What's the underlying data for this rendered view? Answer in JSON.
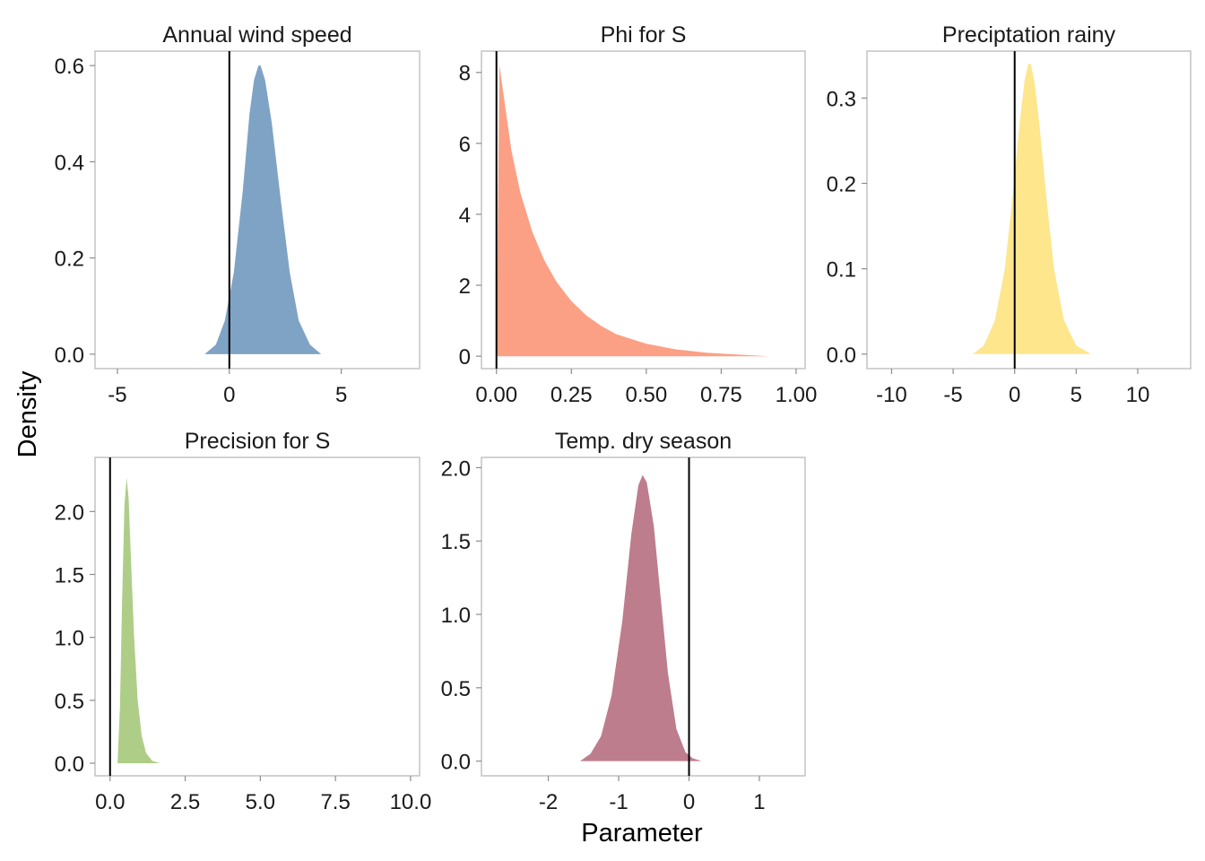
{
  "figure": {
    "xlabel": "Parameter",
    "ylabel": "Density"
  },
  "chart_data": [
    {
      "type": "area",
      "title": "Annual wind speed",
      "color": "#7fa3c4",
      "xlim": [
        -6.0,
        8.5
      ],
      "ylim": [
        -0.03,
        0.63
      ],
      "xticks": [
        -5,
        0,
        5
      ],
      "xtick_labels": [
        "-5",
        "0",
        "5"
      ],
      "yticks": [
        0.0,
        0.2,
        0.4,
        0.6
      ],
      "ytick_labels": [
        "0.0",
        "0.2",
        "0.4",
        "0.6"
      ],
      "ref_x": 0,
      "x": [
        -1.1,
        -0.6,
        -0.2,
        0.2,
        0.6,
        0.9,
        1.1,
        1.3,
        1.4,
        1.6,
        1.9,
        2.3,
        2.7,
        3.1,
        3.6,
        4.1
      ],
      "y": [
        0.0,
        0.02,
        0.07,
        0.17,
        0.34,
        0.5,
        0.57,
        0.6,
        0.6,
        0.57,
        0.48,
        0.32,
        0.17,
        0.07,
        0.02,
        0.0
      ]
    },
    {
      "type": "area",
      "title": "Phi for S",
      "color": "#fba084",
      "xlim": [
        -0.05,
        1.03
      ],
      "ylim": [
        -0.35,
        8.6
      ],
      "xticks": [
        0.0,
        0.25,
        0.5,
        0.75,
        1.0
      ],
      "xtick_labels": [
        "0.00",
        "0.25",
        "0.50",
        "0.75",
        "1.00"
      ],
      "yticks": [
        0,
        2,
        4,
        6,
        8
      ],
      "ytick_labels": [
        "0",
        "2",
        "4",
        "6",
        "8"
      ],
      "ref_x": 0,
      "x": [
        0.0,
        0.01,
        0.03,
        0.05,
        0.08,
        0.12,
        0.16,
        0.2,
        0.25,
        0.3,
        0.35,
        0.4,
        0.5,
        0.6,
        0.7,
        0.8,
        0.91
      ],
      "y": [
        0.0,
        8.2,
        7.0,
        5.8,
        4.6,
        3.5,
        2.7,
        2.1,
        1.55,
        1.15,
        0.85,
        0.62,
        0.35,
        0.19,
        0.1,
        0.05,
        0.0
      ]
    },
    {
      "type": "area",
      "title": "Preciptation rainy",
      "color": "#fde68c",
      "xlim": [
        -12.0,
        14.3
      ],
      "ylim": [
        -0.017,
        0.355
      ],
      "xticks": [
        -10,
        -5,
        0,
        5,
        10
      ],
      "xtick_labels": [
        "-10",
        "-5",
        "0",
        "5",
        "10"
      ],
      "yticks": [
        0.0,
        0.1,
        0.2,
        0.3
      ],
      "ytick_labels": [
        "0.0",
        "0.1",
        "0.2",
        "0.3"
      ],
      "ref_x": 0,
      "x": [
        -3.4,
        -2.5,
        -1.6,
        -0.8,
        -0.2,
        0.4,
        0.8,
        1.1,
        1.3,
        1.6,
        2.0,
        2.6,
        3.2,
        4.0,
        5.0,
        6.2
      ],
      "y": [
        0.0,
        0.01,
        0.04,
        0.1,
        0.18,
        0.27,
        0.32,
        0.34,
        0.34,
        0.32,
        0.27,
        0.18,
        0.1,
        0.04,
        0.01,
        0.0
      ]
    },
    {
      "type": "area",
      "title": "Precision for S",
      "color": "#aece88",
      "xlim": [
        -0.5,
        10.3
      ],
      "ylim": [
        -0.1,
        2.43
      ],
      "xticks": [
        0.0,
        2.5,
        5.0,
        7.5,
        10.0
      ],
      "xtick_labels": [
        "0.0",
        "2.5",
        "5.0",
        "7.5",
        "10.0"
      ],
      "yticks": [
        0.0,
        0.5,
        1.0,
        1.5,
        2.0
      ],
      "ytick_labels": [
        "0.0",
        "0.5",
        "1.0",
        "1.5",
        "2.0"
      ],
      "ref_x": 0,
      "x": [
        0.25,
        0.33,
        0.4,
        0.48,
        0.55,
        0.62,
        0.7,
        0.8,
        0.92,
        1.05,
        1.2,
        1.4,
        1.65
      ],
      "y": [
        0.0,
        0.45,
        1.3,
        2.05,
        2.27,
        2.1,
        1.6,
        1.0,
        0.5,
        0.22,
        0.08,
        0.02,
        0.0
      ]
    },
    {
      "type": "area",
      "title": "Temp. dry season",
      "color": "#bd7d8c",
      "xlim": [
        -2.95,
        1.65
      ],
      "ylim": [
        -0.1,
        2.07
      ],
      "xticks": [
        -2,
        -1,
        0,
        1
      ],
      "xtick_labels": [
        "-2",
        "-1",
        "0",
        "1"
      ],
      "yticks": [
        0.0,
        0.5,
        1.0,
        1.5,
        2.0
      ],
      "ytick_labels": [
        "0.0",
        "0.5",
        "1.0",
        "1.5",
        "2.0"
      ],
      "ref_x": 0,
      "x": [
        -1.55,
        -1.4,
        -1.25,
        -1.1,
        -0.95,
        -0.82,
        -0.72,
        -0.66,
        -0.6,
        -0.5,
        -0.4,
        -0.3,
        -0.18,
        -0.05,
        0.05,
        0.18
      ],
      "y": [
        0.0,
        0.05,
        0.17,
        0.45,
        0.95,
        1.55,
        1.88,
        1.95,
        1.9,
        1.6,
        1.1,
        0.6,
        0.22,
        0.06,
        0.02,
        0.0
      ]
    }
  ]
}
